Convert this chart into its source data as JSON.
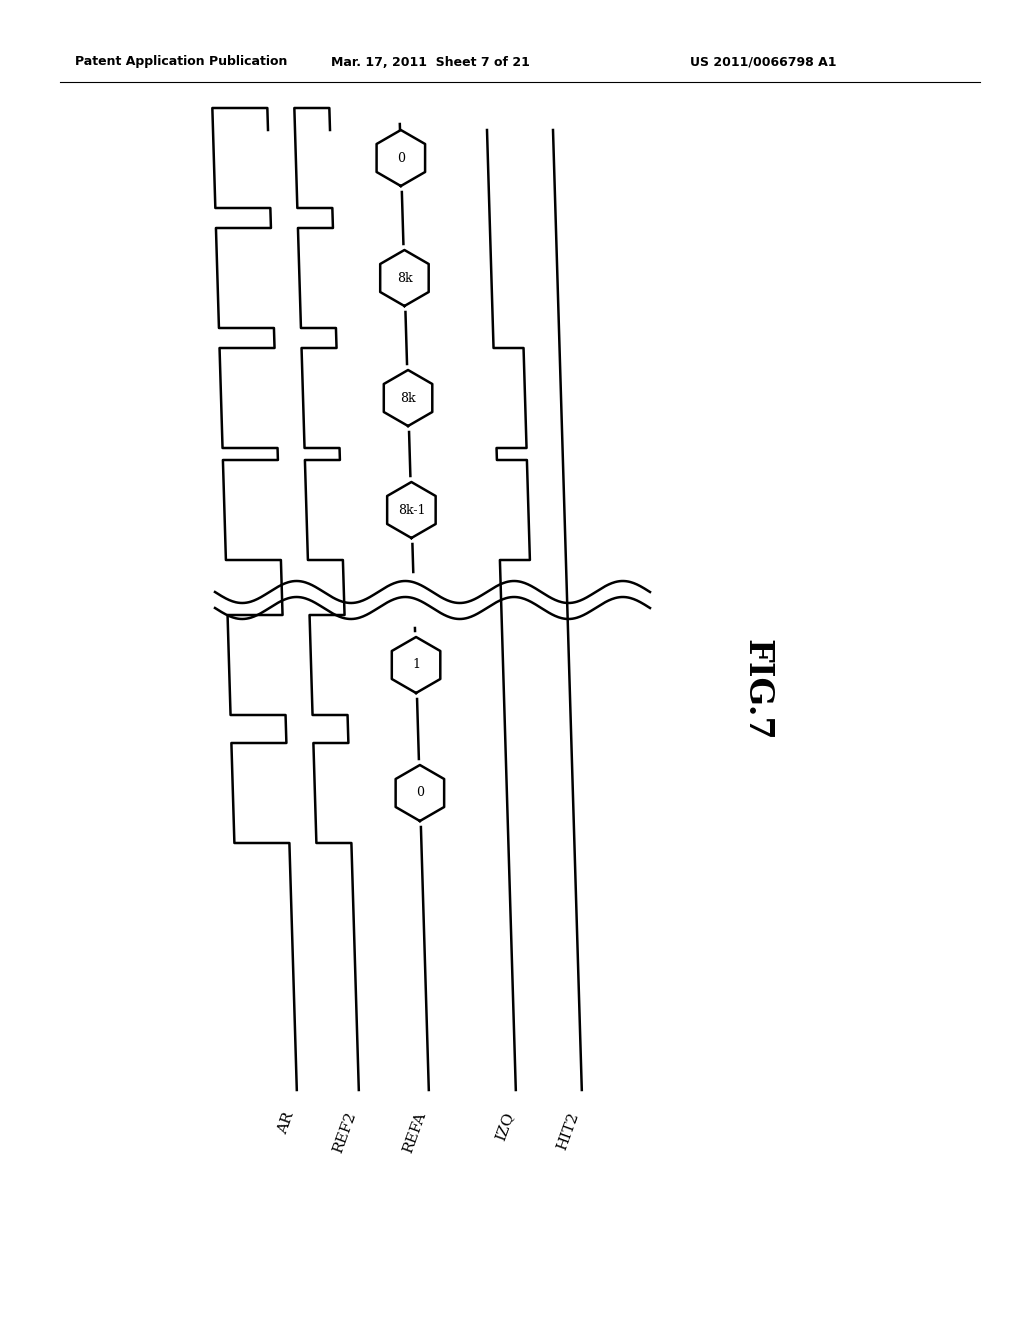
{
  "title_left": "Patent Application Publication",
  "title_mid": "Mar. 17, 2011  Sheet 7 of 21",
  "title_right": "US 2011/0066798 A1",
  "fig_label": "FIG.7",
  "signal_labels": [
    "AR",
    "REF2",
    "REFA",
    "IZQ",
    "HIT2"
  ],
  "hex_labels": [
    "0",
    "8k",
    "8k",
    "8k-1",
    "1",
    "0"
  ],
  "bg_color": "#ffffff",
  "line_color": "#000000"
}
